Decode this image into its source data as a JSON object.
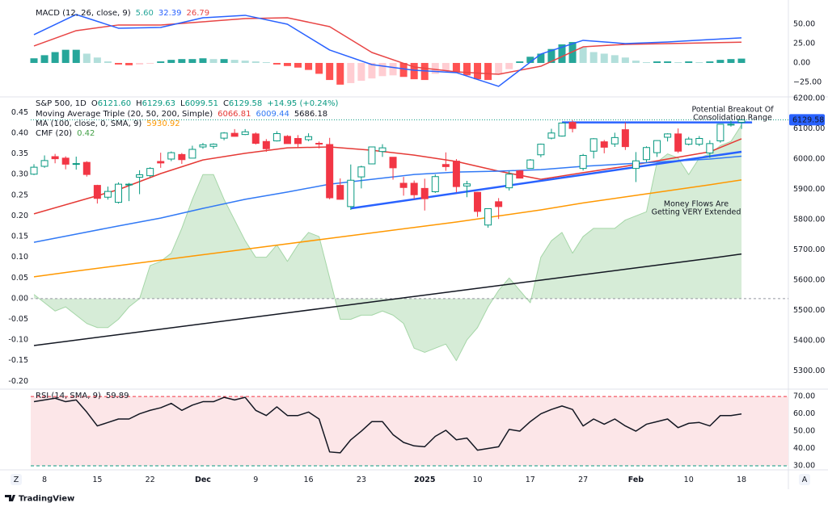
{
  "chart_data": [
    {
      "type": "candlestick",
      "legend": {
        "symbol": "S&P 500, 1D",
        "ohlc_labels": [
          "O",
          "H",
          "L",
          "C"
        ],
        "ohlc_values": [
          "6121.60",
          "6129.63",
          "6099.51",
          "6129.58"
        ],
        "change": "+14.95 (+0.24%)"
      },
      "indicators": [
        {
          "title": "Moving Average Triple (20, 50, 200, Simple)",
          "values": [
            6066.81,
            6009.44,
            5686.18
          ],
          "colors": [
            "#e53935",
            "#3179f5",
            "#131722"
          ]
        },
        {
          "title": "MA (100, close, 0, SMA, 9)",
          "values": [
            5930.92
          ],
          "colors": [
            "#ff9800"
          ]
        },
        {
          "title": "CMF (20)",
          "values": [
            0.42
          ],
          "colors": [
            "#43a047"
          ]
        }
      ],
      "categories": [
        null,
        "8",
        null,
        null,
        null,
        null,
        "15",
        null,
        null,
        null,
        null,
        "22",
        null,
        null,
        null,
        null,
        "Dec",
        null,
        null,
        null,
        null,
        "9",
        null,
        null,
        null,
        null,
        "16",
        null,
        null,
        null,
        null,
        "23",
        null,
        null,
        null,
        null,
        null,
        "2025",
        null,
        null,
        null,
        null,
        "10",
        null,
        null,
        null,
        null,
        "17",
        null,
        null,
        null,
        null,
        "27",
        null,
        null,
        null,
        null,
        "Feb",
        null,
        null,
        null,
        null,
        "10",
        null,
        null,
        null,
        null,
        "18"
      ],
      "open": [
        5950,
        5976,
        6008,
        6003,
        5985,
        5989,
        5913,
        5874,
        5857,
        5917,
        5940,
        5945,
        5992,
        6000,
        6015,
        6003,
        6040,
        6042,
        6069,
        6085,
        6081,
        6083,
        6058,
        6060,
        6075,
        6068,
        6064,
        6052,
        6048,
        5913,
        5843,
        5941,
        5984,
        6025,
        6006,
        5920,
        5920,
        5903,
        5892,
        5982,
        5993,
        5911,
        5890,
        5782,
        5859,
        5905,
        5961,
        5969,
        6014,
        6069,
        6076,
        6121,
        5969,
        6026,
        6057,
        6050,
        6097,
        5969,
        5998,
        6021,
        6072,
        6083,
        6049,
        6049,
        6020,
        6060,
        6115,
        6121.6
      ],
      "high": [
        5983,
        6012,
        6017,
        6009,
        6008,
        5993,
        5915,
        5909,
        5923,
        5921,
        5963,
        5973,
        6021,
        6025,
        6020,
        6044,
        6053,
        6052,
        6089,
        6099,
        6099,
        6088,
        6066,
        6092,
        6079,
        6079,
        6085,
        6058,
        6070,
        5936,
        5982,
        5978,
        6040,
        6049,
        6006,
        5941,
        5929,
        5935,
        5949,
        6022,
        6000,
        5928,
        5891,
        5837,
        5871,
        5960,
        5964,
        6000,
        6051,
        6100,
        6119,
        6128,
        6017,
        6069,
        6063,
        6087,
        6121,
        6023,
        6042,
        6062,
        6085,
        6101,
        6073,
        6076,
        6062,
        6116,
        6127,
        6129.63
      ],
      "low": [
        5947,
        5971,
        5986,
        5966,
        5965,
        5942,
        5853,
        5866,
        5853,
        5861,
        5884,
        5940,
        5971,
        5993,
        5984,
        6003,
        6034,
        6034,
        6062,
        6074,
        6079,
        6048,
        6024,
        6058,
        6051,
        6039,
        6059,
        6035,
        5867,
        5866,
        5832,
        5903,
        5983,
        6007,
        5932,
        5879,
        5868,
        5830,
        5888,
        5961,
        5890,
        5874,
        5809,
        5773,
        5802,
        5896,
        5938,
        5969,
        6006,
        6065,
        6074,
        6088,
        5962,
        6002,
        6019,
        6040,
        6030,
        5924,
        5990,
        6007,
        6058,
        6020,
        6045,
        6043,
        6004,
        6054,
        6107,
        6099.51
      ],
      "close": [
        5973,
        5995,
        6001,
        5983,
        5985,
        5949,
        5870,
        5893,
        5917,
        5917,
        5948,
        5969,
        5987,
        6021,
        5998,
        6032,
        6047,
        6049,
        6086,
        6075,
        6090,
        6052,
        6034,
        6084,
        6051,
        6051,
        6074,
        6050,
        5872,
        5867,
        5930,
        5974,
        6040,
        6037,
        5971,
        5906,
        5882,
        5869,
        5942,
        5975,
        5909,
        5918,
        5827,
        5836,
        5843,
        5950,
        5937,
        5997,
        6049,
        6086,
        6119,
        6101,
        6012,
        6067,
        6039,
        6071,
        6041,
        5994,
        6038,
        6061,
        6083,
        6026,
        6066,
        6068,
        6051,
        6115,
        6115,
        6129.58
      ],
      "up_color": "#089981",
      "down_color": "#f23645",
      "lines": [
        {
          "color": "#e53935",
          "x": [
            0,
            4,
            8,
            12,
            16,
            20,
            24,
            28,
            32,
            36,
            40,
            44,
            48,
            52,
            56,
            60,
            64,
            67
          ],
          "values": [
            5819,
            5859,
            5899,
            5952,
            5997,
            6019,
            6037,
            6040,
            6029,
            6013,
            5992,
            5960,
            5933,
            5955,
            5976,
            6000,
            6024,
            6066.81
          ]
        },
        {
          "color": "#3179f5",
          "x": [
            0,
            4,
            8,
            12,
            16,
            20,
            24,
            28,
            32,
            36,
            40,
            44,
            48,
            52,
            56,
            60,
            64,
            67
          ],
          "values": [
            5725,
            5752,
            5779,
            5805,
            5837,
            5867,
            5891,
            5917,
            5933,
            5949,
            5957,
            5960,
            5965,
            5976,
            5984,
            5992,
            6000,
            6009.44
          ]
        },
        {
          "color": "#131722",
          "x": [
            0,
            4,
            8,
            12,
            16,
            20,
            24,
            28,
            32,
            36,
            40,
            44,
            48,
            52,
            56,
            60,
            64,
            67
          ],
          "values": [
            5384,
            5402,
            5420,
            5438,
            5456,
            5474,
            5492,
            5510,
            5528,
            5546,
            5564,
            5582,
            5600,
            5618,
            5636,
            5654,
            5672,
            5686.18
          ]
        },
        {
          "color": "#ff9800",
          "x": [
            0,
            4,
            8,
            12,
            16,
            20,
            24,
            28,
            32,
            36,
            40,
            44,
            48,
            52,
            56,
            60,
            64,
            67
          ],
          "values": [
            5611,
            5630,
            5648,
            5666,
            5684,
            5702,
            5720,
            5738,
            5756,
            5774,
            5792,
            5812,
            5832,
            5855,
            5875,
            5895,
            5915,
            5930.92
          ]
        }
      ],
      "cmf": {
        "axis": "y2",
        "color": "#a5d6a7",
        "fill": "#c8e6c9",
        "values": [
          0.01,
          -0.01,
          -0.03,
          -0.02,
          -0.04,
          -0.06,
          -0.07,
          -0.07,
          -0.05,
          -0.02,
          0,
          0.08,
          0.09,
          0.11,
          0.17,
          0.24,
          0.3,
          0.3,
          0.24,
          0.19,
          0.14,
          0.1,
          0.1,
          0.13,
          0.09,
          0.13,
          0.16,
          0.15,
          0.05,
          -0.05,
          -0.05,
          -0.04,
          -0.04,
          -0.03,
          -0.04,
          -0.06,
          -0.12,
          -0.13,
          -0.12,
          -0.11,
          -0.15,
          -0.1,
          -0.07,
          -0.02,
          0.02,
          0.05,
          0.02,
          -0.01,
          0.1,
          0.14,
          0.16,
          0.11,
          0.15,
          0.17,
          0.17,
          0.17,
          0.19,
          0.2,
          0.21,
          0.33,
          0.35,
          0.34,
          0.3,
          0.34,
          0.35,
          0.37,
          0.38,
          0.42
        ]
      },
      "trendline_color": "#2962ff",
      "trendlines": [
        {
          "x": [
            50,
            68
          ],
          "values": [
            6121,
            6121
          ]
        },
        {
          "x": [
            30,
            67
          ],
          "values": [
            5837,
            6024
          ]
        }
      ],
      "annotation_color": "#2962ff",
      "annotations": [
        {
          "lines": [
            "Potential Breakout Of",
            "Consolidation Range"
          ]
        },
        {
          "lines": [
            "Money Flows Are",
            "Getting VERY Extended"
          ]
        }
      ],
      "last_price_color": "#2962ff",
      "ylim": [
        5245.3,
        6200
      ],
      "yticks": [
        {
          "value": 6200,
          "label": "6200.00"
        },
        {
          "value": 6100,
          "label": "6100.00"
        },
        {
          "value": 6000,
          "label": "6000.00"
        },
        {
          "value": 5900,
          "label": "5900.00"
        },
        {
          "value": 5800,
          "label": "5800.00"
        },
        {
          "value": 5700,
          "label": "5700.00"
        },
        {
          "value": 5600,
          "label": "5600.00"
        },
        {
          "value": 5500,
          "label": "5500.00"
        },
        {
          "value": 5400,
          "label": "5400.00"
        },
        {
          "value": 5300,
          "label": "5300.00"
        }
      ],
      "y2lim": [
        -0.215,
        0.484
      ],
      "y2ticks": [
        0.45,
        {
          "value": 0.4,
          "label": "0.40"
        },
        0.35,
        {
          "value": 0.3,
          "label": "0.30"
        },
        0.25,
        {
          "value": 0.2,
          "label": "0.20"
        },
        0.15,
        {
          "value": 0.1,
          "label": "0.10"
        },
        0.05,
        {
          "value": 0,
          "label": "0.00"
        },
        -0.05,
        {
          "value": -0.1,
          "label": "-0.10"
        },
        -0.15,
        {
          "value": -0.2,
          "label": "-0.20"
        }
      ]
    },
    {
      "type": "macd",
      "title": "MACD (12, 26, close, 9)",
      "legend_values": [
        {
          "value": 5.6,
          "label": "5.60"
        },
        32.39,
        26.79
      ],
      "histogram_colors": [
        "#26a69a",
        "#b2dfdb",
        "#ff5252",
        "#ffcdd2"
      ],
      "histogram": [
        6,
        10,
        14,
        17,
        17,
        12,
        7,
        2,
        -2,
        -3,
        -2,
        -1,
        2,
        4,
        5,
        5,
        6,
        5,
        5,
        4,
        3,
        2,
        1,
        -2,
        -4,
        -6,
        -9,
        -14,
        -22,
        -28,
        -26,
        -23,
        -20,
        -17,
        -16,
        -18,
        -21,
        -22,
        -14,
        -10,
        -12,
        -16,
        -21,
        -22,
        -15,
        -8,
        2,
        8,
        12,
        18,
        24,
        27,
        20,
        14,
        12,
        10,
        7,
        3,
        1,
        2,
        2,
        1,
        2,
        1,
        2,
        4,
        5,
        5.6
      ],
      "macd": {
        "color": "#2962ff",
        "x": [
          0,
          4,
          8,
          12,
          16,
          20,
          24,
          28,
          32,
          36,
          40,
          44,
          48,
          52,
          56,
          60,
          64,
          67
        ],
        "values": [
          36.5,
          62.5,
          44.8,
          45.8,
          58.3,
          61.5,
          50,
          16.7,
          -2.1,
          -9.4,
          -12.5,
          -30.2,
          11.5,
          29.2,
          25,
          27.1,
          30.2,
          32.39
        ]
      },
      "signal": {
        "color": "#e84545",
        "x": [
          0,
          4,
          8,
          12,
          16,
          20,
          24,
          28,
          32,
          36,
          40,
          44,
          48,
          52,
          56,
          60,
          64,
          67
        ],
        "values": [
          21.9,
          41.7,
          49,
          49,
          53.1,
          57.3,
          58.3,
          46.9,
          13.5,
          -5.2,
          -11.5,
          -14.6,
          -4.2,
          20.8,
          24,
          25,
          26,
          26.79
        ]
      },
      "ylim": [
        -41.7,
        72.9
      ],
      "yticks": [
        {
          "value": 50,
          "label": "50.00"
        },
        {
          "value": 25,
          "label": "25.00"
        },
        {
          "value": 0,
          "label": "0.00"
        },
        {
          "value": -25,
          "label": "−25.00"
        }
      ]
    },
    {
      "type": "line",
      "title": "RSI (14, SMA, 9)",
      "legend_values": [
        59.89
      ],
      "color": "#131722",
      "values": [
        67,
        68,
        69,
        67,
        68,
        61,
        53,
        55,
        57,
        57,
        60,
        62,
        63.5,
        66,
        62,
        65,
        67,
        67,
        69.5,
        68,
        69.5,
        62,
        59,
        64,
        59,
        59,
        61,
        57,
        38,
        37.5,
        45,
        50,
        55.5,
        55.5,
        48,
        43.5,
        41.5,
        41,
        47,
        50.5,
        45,
        46,
        39,
        40,
        41,
        51,
        50,
        55.5,
        60,
        62.5,
        64.5,
        62.5,
        53,
        57,
        54,
        57,
        53,
        50,
        54,
        55.5,
        57,
        52,
        54.5,
        55,
        53,
        59,
        59,
        59.89
      ],
      "band_colors": [
        "#f23645",
        "#089981"
      ],
      "band_fill": "#fce6e8",
      "ylim": [
        28.6,
        73.3
      ],
      "yticks": [
        {
          "value": 70,
          "label": "70.00"
        },
        {
          "value": 60,
          "label": "60.00"
        },
        {
          "value": 50,
          "label": "50.00"
        },
        {
          "value": 40,
          "label": "40.00"
        },
        {
          "value": 30,
          "label": "30.00"
        }
      ]
    }
  ],
  "ui": {
    "logo": "TradingView",
    "left_button": "Z",
    "right_button": "A"
  }
}
